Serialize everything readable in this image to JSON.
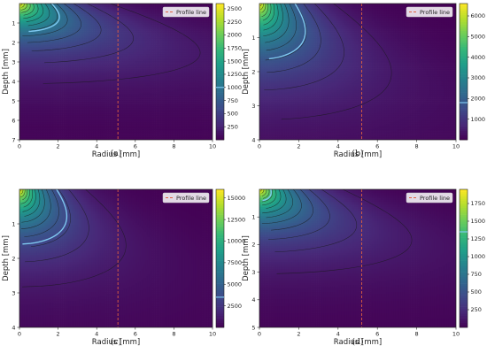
{
  "chart_data": [
    {
      "panel": "(a)",
      "type": "heatmap",
      "xlabel": "Radius [mm]",
      "ylabel": "Depth [mm]",
      "xlim": [
        0,
        10
      ],
      "ylim": [
        7,
        0
      ],
      "xticks": [
        "0",
        "2",
        "4",
        "6",
        "8",
        "10"
      ],
      "yticks": [
        "1",
        "2",
        "3",
        "4",
        "5",
        "6",
        "7"
      ],
      "colorbar_ticks": [
        "250",
        "500",
        "750",
        "1000",
        "1250",
        "1500",
        "1750",
        "2000",
        "2250",
        "2500"
      ],
      "colorbar_range": [
        0,
        2600
      ],
      "highlight_level": 1000,
      "profile_line_x": 5.1,
      "legend": "Profile line",
      "legend_position": "top-right",
      "field": {
        "peak": 2600,
        "radial_scale_mm": 2.0,
        "depth_scale_mm": 1.75,
        "lateral_spread_per_mm": 0.6
      }
    },
    {
      "panel": "(b)",
      "type": "heatmap",
      "xlabel": "Radius [mm]",
      "ylabel": "Depth [mm]",
      "xlim": [
        0,
        10
      ],
      "ylim": [
        4,
        0
      ],
      "xticks": [
        "0",
        "2",
        "4",
        "6",
        "8",
        "10"
      ],
      "yticks": [
        "1",
        "2",
        "3",
        "4"
      ],
      "colorbar_ticks": [
        "1000",
        "2000",
        "3000",
        "4000",
        "5000",
        "6000"
      ],
      "colorbar_range": [
        0,
        6600
      ],
      "highlight_level": 1800,
      "profile_line_x": 5.2,
      "legend": "Profile line",
      "legend_position": "top-right",
      "field": {
        "peak": 6600,
        "radial_scale_mm": 1.6,
        "depth_scale_mm": 1.45,
        "lateral_spread_per_mm": 0.6
      }
    },
    {
      "panel": "(c)",
      "type": "heatmap",
      "xlabel": "Radius [mm]",
      "ylabel": "Depth [mm]",
      "xlim": [
        0,
        10
      ],
      "ylim": [
        4,
        0
      ],
      "xticks": [
        "0",
        "2",
        "4",
        "6",
        "8",
        "10"
      ],
      "yticks": [
        "1",
        "2",
        "3",
        "4"
      ],
      "colorbar_ticks": [
        "2500",
        "5000",
        "7500",
        "10000",
        "12500",
        "15000"
      ],
      "colorbar_range": [
        0,
        16000
      ],
      "highlight_level": 3500,
      "profile_line_x": 5.1,
      "legend": "Profile line",
      "legend_position": "top-right",
      "field": {
        "peak": 16000,
        "radial_scale_mm": 1.45,
        "depth_scale_mm": 1.2,
        "lateral_spread_per_mm": 0.6
      }
    },
    {
      "panel": "(d)",
      "type": "heatmap",
      "xlabel": "Radius [mm]",
      "ylabel": "Depth [mm]",
      "xlim": [
        0,
        10
      ],
      "ylim": [
        5,
        0
      ],
      "xticks": [
        "0",
        "2",
        "4",
        "6",
        "8",
        "10"
      ],
      "yticks": [
        "1",
        "2",
        "3",
        "4",
        "5"
      ],
      "colorbar_ticks": [
        "250",
        "500",
        "750",
        "1000",
        "1250",
        "1500",
        "1750"
      ],
      "colorbar_range": [
        0,
        1950
      ],
      "highlight_level": 1350,
      "profile_line_x": 5.2,
      "legend": "Profile line",
      "legend_position": "top-right",
      "field": {
        "peak": 1950,
        "radial_scale_mm": 1.8,
        "depth_scale_mm": 1.3,
        "lateral_spread_per_mm": 0.7
      }
    }
  ],
  "colors": {
    "colormap": [
      "#440154",
      "#482878",
      "#3e4989",
      "#31688e",
      "#26828e",
      "#1f9e89",
      "#35b779",
      "#6ece58",
      "#b5de2b",
      "#fde725"
    ],
    "contour": "#1a1a1a",
    "highlight_contour": "#7ec8f0",
    "profile_line": "#e06040"
  }
}
